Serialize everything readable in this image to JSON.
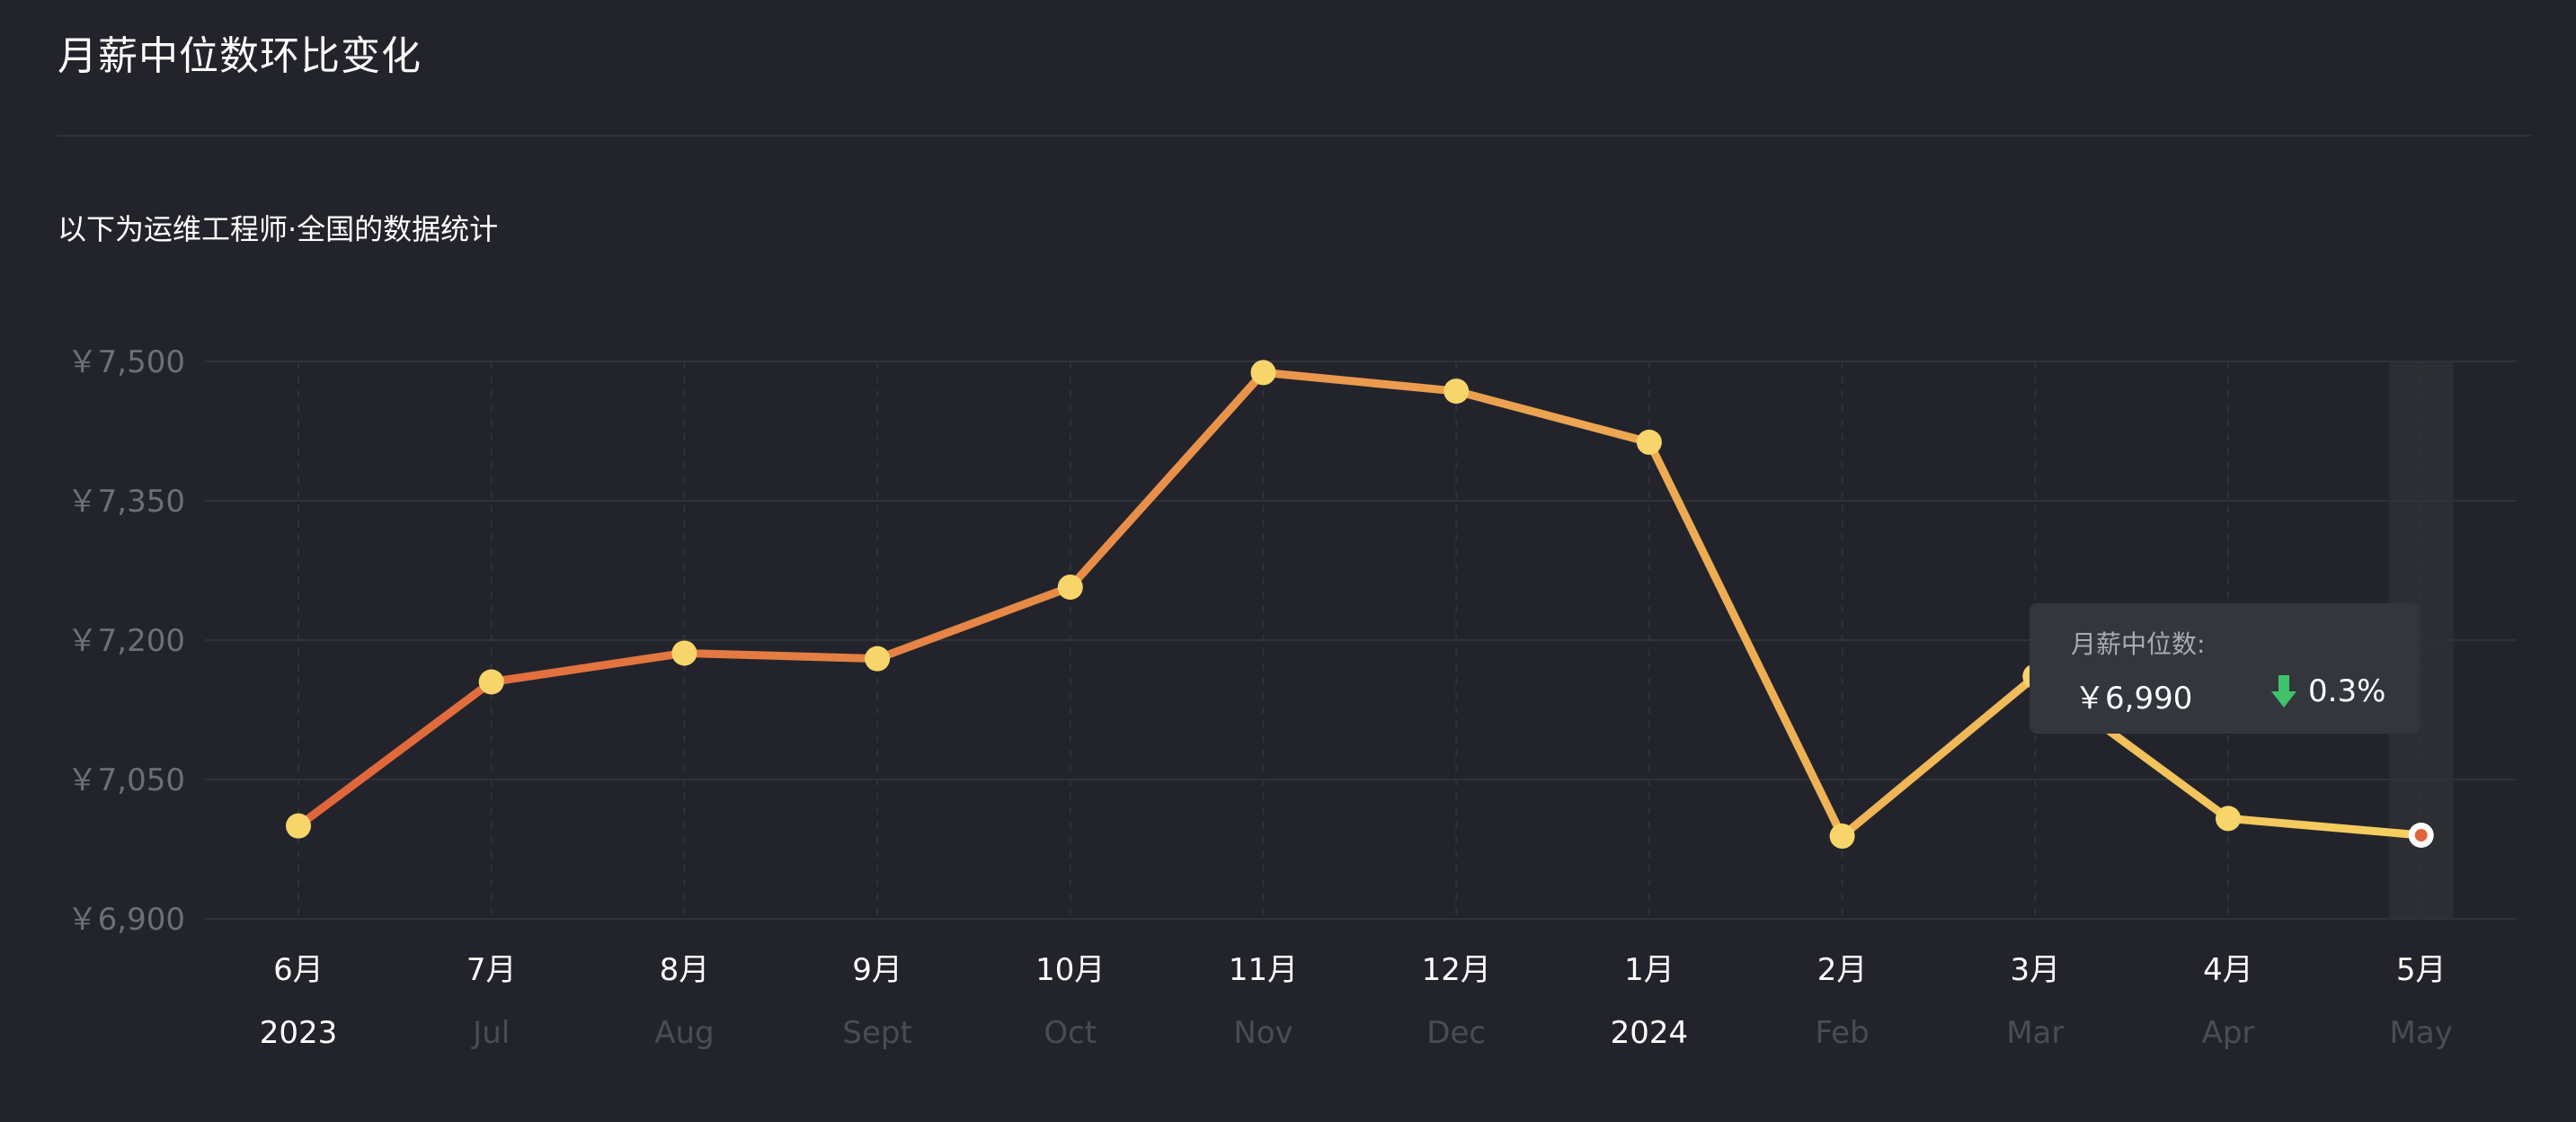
{
  "header": {
    "title": "月薪中位数环比变化",
    "subtitle": "以下为运维工程师·全国的数据统计"
  },
  "colors": {
    "background": "#23242b",
    "line_start": "#e0643a",
    "line_end": "#f5d060",
    "point": "#f7d56a",
    "grid": "#30323a",
    "highlight_band": "#2d2e33",
    "down_arrow": "#3fc36a",
    "axis_text_dim": "#4a4c55",
    "axis_text": "#ffffff",
    "y_tick_text": "#6d6f78"
  },
  "chart_data": {
    "type": "line",
    "title": "月薪中位数环比变化",
    "subtitle": "以下为运维工程师·全国的数据统计",
    "xlabel": "",
    "ylabel": "",
    "categories": [
      "6月",
      "7月",
      "8月",
      "9月",
      "10月",
      "11月",
      "12月",
      "1月",
      "2月",
      "3月",
      "4月",
      "5月"
    ],
    "secondary_labels": [
      "2023",
      "Jul",
      "Aug",
      "Sept",
      "Oct",
      "Nov",
      "Dec",
      "2024",
      "Feb",
      "Mar",
      "Apr",
      "May"
    ],
    "secondary_label_emphasis": [
      true,
      false,
      false,
      false,
      false,
      false,
      false,
      true,
      false,
      false,
      false,
      false
    ],
    "series": [
      {
        "values": [
          7000,
          7155,
          7186,
          7180,
          7257,
          7488,
          7468,
          7413,
          6989,
          7161,
          7008,
          6990
        ]
      }
    ],
    "y_ticks": [
      6900,
      7050,
      7200,
      7350,
      7500
    ],
    "y_tick_labels": [
      "￥6,900",
      "￥7,050",
      "￥7,200",
      "￥7,350",
      "￥7,500"
    ],
    "ylim": [
      6900,
      7500
    ],
    "grid": true,
    "highlighted_index": 11,
    "tooltip": {
      "label": "月薪中位数:",
      "value": "￥6,990",
      "change": "0.3%",
      "direction": "down"
    }
  }
}
